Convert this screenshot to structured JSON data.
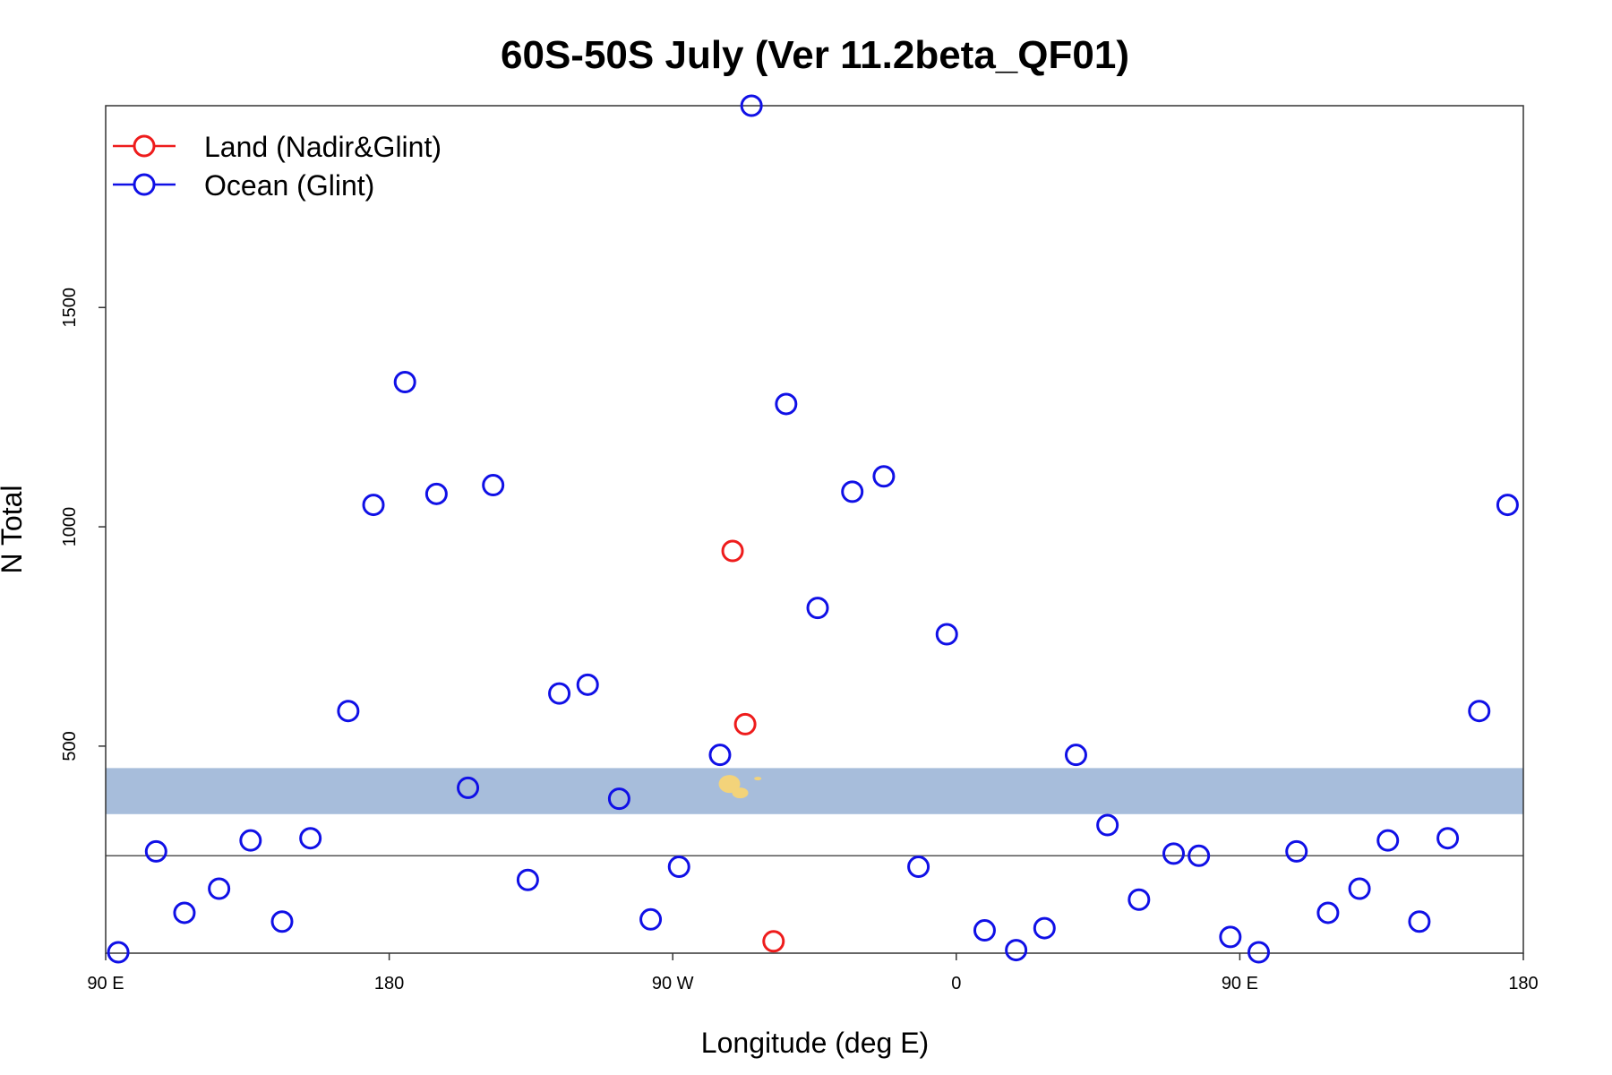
{
  "chart_data": {
    "type": "scatter",
    "title": "60S-50S July (Ver 11.2beta_QF01)",
    "xlabel": "Longitude (deg E)",
    "ylabel": "N Total",
    "x_ticks": [
      {
        "value": 90,
        "label": "90 E"
      },
      {
        "value": 180,
        "label": "180"
      },
      {
        "value": 270,
        "label": "90 W"
      },
      {
        "value": 360,
        "label": "0"
      },
      {
        "value": 450,
        "label": "90 E"
      },
      {
        "value": 540,
        "label": "180"
      }
    ],
    "y_ticks": [
      {
        "value": 500,
        "label": "500"
      },
      {
        "value": 1000,
        "label": "1000"
      },
      {
        "value": 1500,
        "label": "1500"
      }
    ],
    "xlim": [
      90,
      540
    ],
    "ylim": [
      28,
      1960
    ],
    "reference_line_y": 250,
    "latitude_band_y": [
      345,
      450
    ],
    "legend_position": "top-left",
    "colors": {
      "band": "#a7bddb",
      "land_patch": "#f3d37a",
      "reference_line": "#555555"
    },
    "series": [
      {
        "name": "Land (Nadir&Glint)",
        "color": "#ee1c1c",
        "x": [
          289,
          293,
          302
        ],
        "y": [
          945,
          550,
          55
        ]
      },
      {
        "name": "Ocean (Glint)",
        "color": "#1010e6",
        "x": [
          94,
          106,
          115,
          126,
          136,
          146,
          155,
          167,
          175,
          185,
          195,
          205,
          213,
          224,
          234,
          243,
          253,
          263,
          272,
          285,
          295,
          306,
          316,
          327,
          337,
          348,
          357,
          369,
          379,
          388,
          398,
          408,
          418,
          429,
          437,
          447,
          456,
          468,
          478,
          488,
          497,
          507,
          516,
          526,
          535
        ],
        "y": [
          30,
          260,
          120,
          175,
          285,
          100,
          290,
          580,
          1050,
          1330,
          1075,
          405,
          1095,
          195,
          620,
          640,
          380,
          105,
          225,
          480,
          1960,
          1280,
          815,
          1080,
          1115,
          225,
          755,
          80,
          35,
          85,
          480,
          320,
          150,
          255,
          250,
          65,
          30,
          260,
          120,
          175,
          285,
          100,
          290,
          580,
          1050
        ]
      }
    ]
  }
}
